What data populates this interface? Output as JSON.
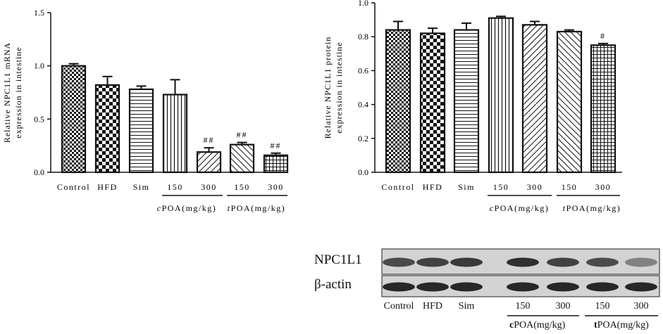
{
  "chart_data": [
    {
      "type": "bar",
      "panel": "mRNA",
      "ylabel_lines": [
        "Relative NPC1L1 mRNA",
        "expression in intestine"
      ],
      "ylim": [
        0,
        1.5
      ],
      "yticks": [
        "0.0",
        "0.5",
        "1.0",
        "1.5"
      ],
      "categories": [
        "Control",
        "HFD",
        "Sim",
        "150",
        "300",
        "150",
        "300"
      ],
      "values": [
        1.0,
        0.82,
        0.78,
        0.73,
        0.19,
        0.26,
        0.16
      ],
      "errors": [
        0.02,
        0.08,
        0.03,
        0.14,
        0.04,
        0.02,
        0.02
      ],
      "annotations": [
        "",
        "",
        "",
        "",
        "##",
        "##",
        "##"
      ],
      "patterns": [
        "checker-fine",
        "checker-coarse",
        "hlines",
        "vlines",
        "diag-right",
        "diag-left",
        "grid"
      ],
      "groups": [
        {
          "prefix": "c",
          "label": "POA(mg/kg)"
        },
        {
          "prefix": "t",
          "label": "POA(mg/kg)"
        }
      ]
    },
    {
      "type": "bar",
      "panel": "protein",
      "ylabel_lines": [
        "Relative NPC1L1 protein",
        "expression in intestine"
      ],
      "ylim": [
        0,
        1.0
      ],
      "yticks": [
        "0.0",
        "0.2",
        "0.4",
        "0.6",
        "0.8",
        "1.0"
      ],
      "categories": [
        "Control",
        "HFD",
        "Sim",
        "150",
        "300",
        "150",
        "300"
      ],
      "values": [
        0.84,
        0.82,
        0.84,
        0.91,
        0.87,
        0.83,
        0.75
      ],
      "errors": [
        0.05,
        0.03,
        0.04,
        0.01,
        0.02,
        0.01,
        0.01
      ],
      "annotations": [
        "",
        "",
        "",
        "",
        "",
        "",
        "#"
      ],
      "patterns": [
        "checker-fine",
        "checker-coarse",
        "hlines",
        "vlines",
        "diag-right",
        "diag-left",
        "grid"
      ],
      "groups": [
        {
          "prefix": "c",
          "label": "POA(mg/kg)"
        },
        {
          "prefix": "t",
          "label": "POA(mg/kg)"
        }
      ]
    }
  ],
  "blot": {
    "rows": [
      "NPC1L1",
      "β-actin"
    ],
    "lanes": [
      "Control",
      "HFD",
      "Sim",
      "150",
      "300",
      "150",
      "300"
    ],
    "band_intensity": {
      "NPC1L1": [
        0.75,
        0.8,
        0.85,
        0.9,
        0.8,
        0.75,
        0.45
      ],
      "β-actin": [
        0.95,
        0.95,
        0.95,
        0.95,
        0.95,
        0.95,
        0.95
      ]
    },
    "groups": [
      {
        "prefix": "c",
        "label": "POA(mg/kg)"
      },
      {
        "prefix": "t",
        "label": "POA(mg/kg)"
      }
    ]
  }
}
